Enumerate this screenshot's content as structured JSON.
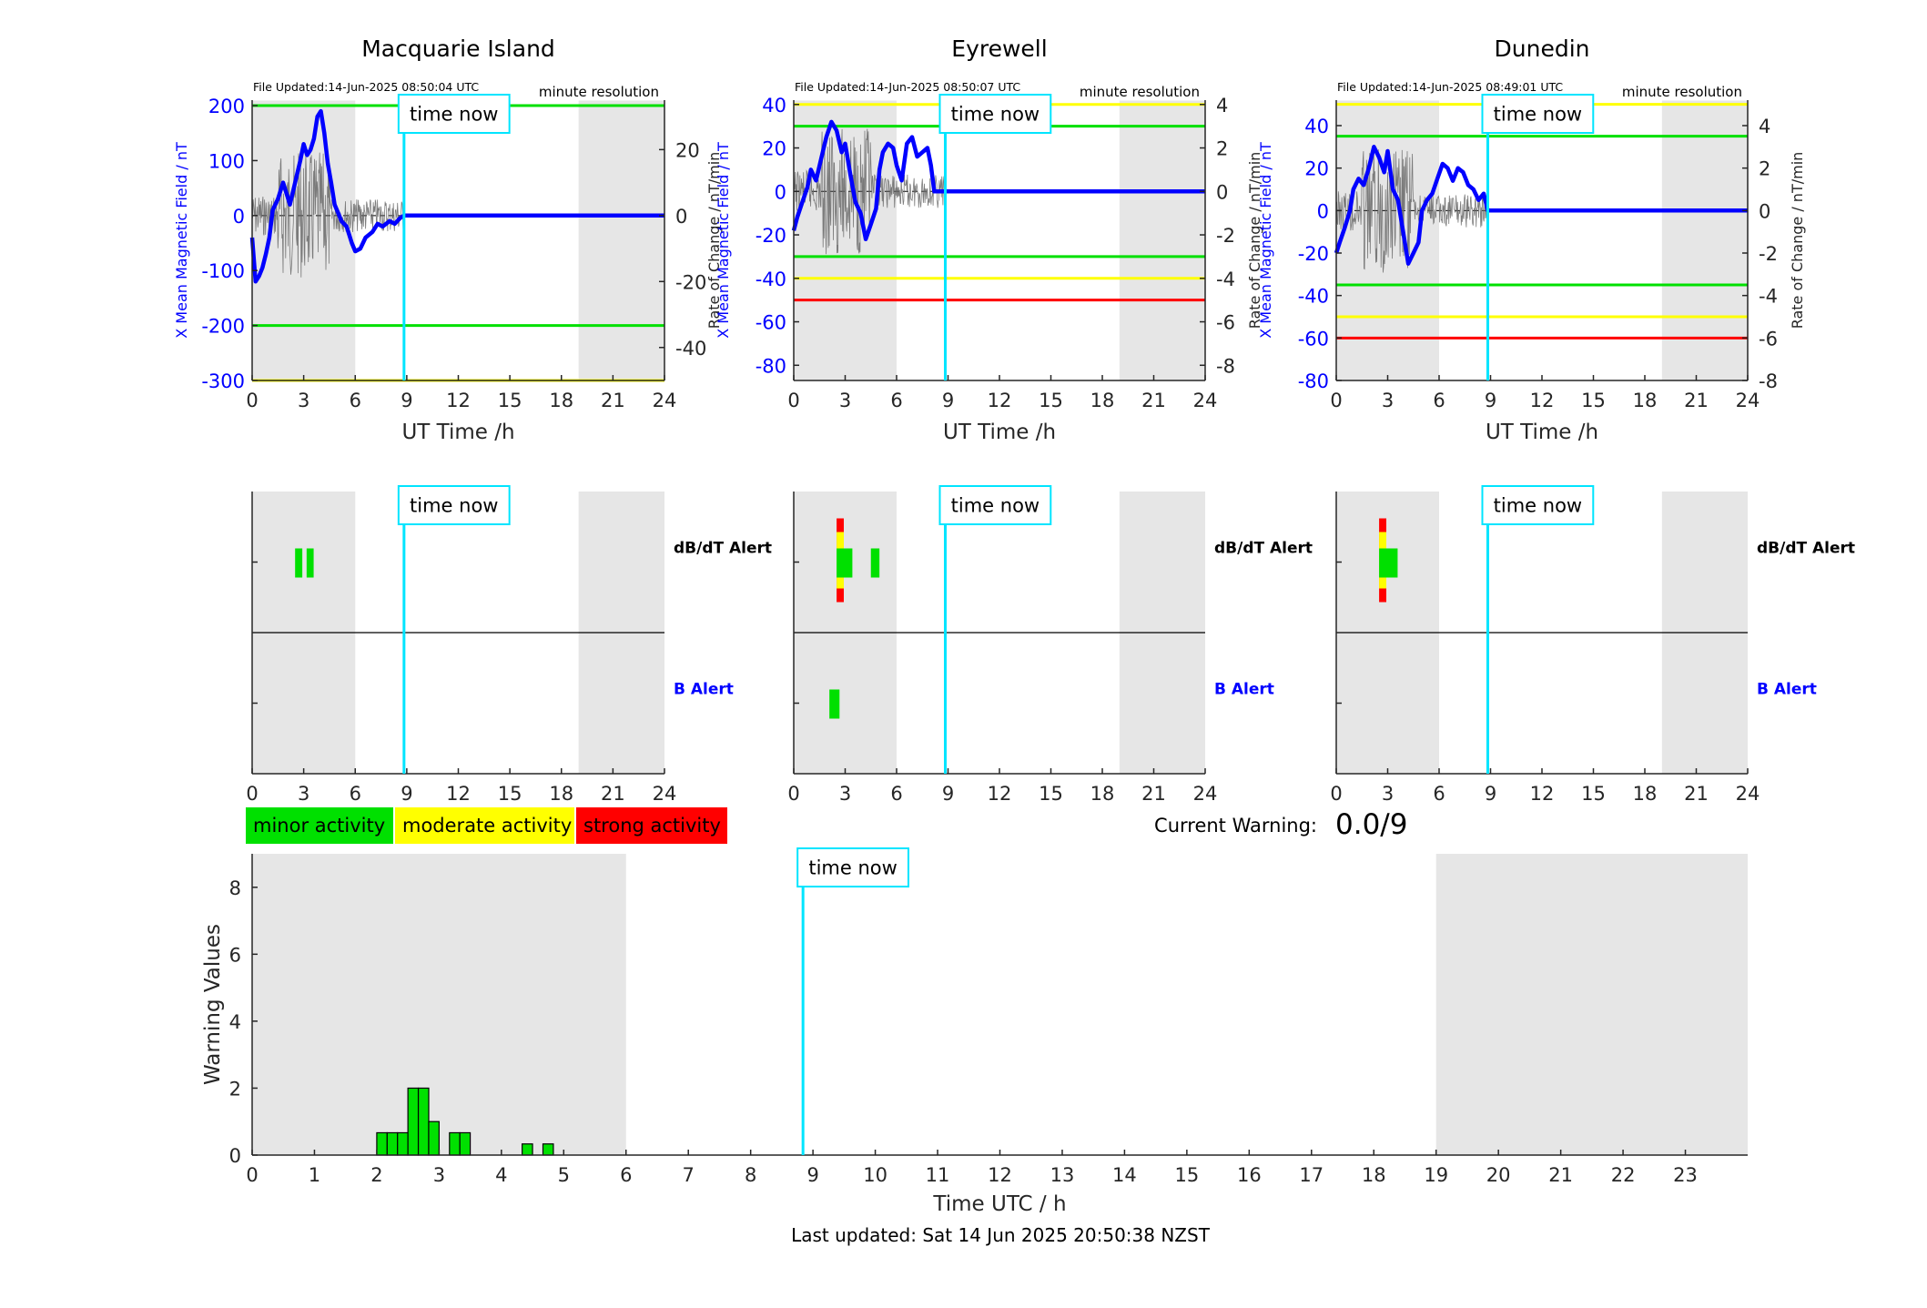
{
  "chart_data": [
    {
      "panel": "magnetic-field",
      "station": "Macquarie Island",
      "type": "line",
      "file_updated": "File Updated:14-Jun-2025 08:50:04 UTC",
      "resolution_label": "minute resolution",
      "xlabel": "UT Time /h",
      "ylabel_left": "X Mean Magnetic Field / nT",
      "ylabel_right": "Rate of Change / nT/min",
      "xlim": [
        0,
        24
      ],
      "xticks": [
        0,
        3,
        6,
        9,
        12,
        15,
        18,
        21,
        24
      ],
      "ylim_left": [
        -300,
        210
      ],
      "yticks_left": [
        -300,
        -200,
        -100,
        0,
        100,
        200
      ],
      "ylim_right": [
        -50,
        35
      ],
      "yticks_right": [
        -40,
        -20,
        0,
        20
      ],
      "night_shading": [
        [
          0,
          6
        ],
        [
          19,
          24
        ]
      ],
      "time_now": 8.84,
      "time_now_label": "time now",
      "thresholds": [
        {
          "value": 200,
          "color": "#00e000"
        },
        {
          "value": -200,
          "color": "#00e000"
        },
        {
          "value": -300,
          "color": "#ffff00"
        }
      ],
      "series": [
        {
          "color": "#0000ff",
          "x": [
            0,
            0.2,
            0.4,
            0.6,
            0.8,
            1.0,
            1.2,
            1.5,
            1.8,
            2.0,
            2.2,
            2.5,
            2.8,
            3.0,
            3.2,
            3.4,
            3.6,
            3.8,
            4.0,
            4.2,
            4.4,
            4.6,
            4.8,
            5.0,
            5.2,
            5.5,
            5.8,
            6.0,
            6.3,
            6.6,
            7.0,
            7.3,
            7.6,
            8.0,
            8.3,
            8.6,
            8.84,
            24
          ],
          "y": [
            -40,
            -120,
            -110,
            -95,
            -70,
            -40,
            10,
            30,
            60,
            40,
            20,
            60,
            100,
            130,
            110,
            120,
            140,
            180,
            190,
            150,
            95,
            60,
            20,
            5,
            -10,
            -20,
            -50,
            -65,
            -60,
            -40,
            -30,
            -15,
            -20,
            -10,
            -15,
            -5,
            0,
            0
          ]
        }
      ]
    },
    {
      "panel": "magnetic-field",
      "station": "Eyrewell",
      "type": "line",
      "file_updated": "File Updated:14-Jun-2025 08:50:07 UTC",
      "resolution_label": "minute resolution",
      "xlabel": "UT Time /h",
      "ylabel_left": "X Mean Magnetic Field / nT",
      "ylabel_right": "Rate of Change / nT/min",
      "xlim": [
        0,
        24
      ],
      "xticks": [
        0,
        3,
        6,
        9,
        12,
        15,
        18,
        21,
        24
      ],
      "ylim_left": [
        -87,
        42
      ],
      "yticks_left": [
        -80,
        -60,
        -40,
        -20,
        0,
        20,
        40
      ],
      "ylim_right": [
        -8.7,
        4.2
      ],
      "yticks_right": [
        -8,
        -6,
        -4,
        -2,
        0,
        2,
        4
      ],
      "night_shading": [
        [
          0,
          6
        ],
        [
          19,
          24
        ]
      ],
      "time_now": 8.84,
      "time_now_label": "time now",
      "thresholds": [
        {
          "value": 40,
          "color": "#ffff00"
        },
        {
          "value": 30,
          "color": "#00e000"
        },
        {
          "value": -30,
          "color": "#00e000"
        },
        {
          "value": -40,
          "color": "#ffff00"
        },
        {
          "value": -50,
          "color": "#ff0000"
        }
      ],
      "series": [
        {
          "color": "#0000ff",
          "x": [
            0,
            0.2,
            0.5,
            0.8,
            1.0,
            1.3,
            1.6,
            1.9,
            2.2,
            2.5,
            2.8,
            3.0,
            3.3,
            3.6,
            3.9,
            4.2,
            4.5,
            4.8,
            5.0,
            5.2,
            5.5,
            5.8,
            6.0,
            6.3,
            6.6,
            6.9,
            7.2,
            7.5,
            7.8,
            8.0,
            8.2,
            8.84,
            24
          ],
          "y": [
            -18,
            -12,
            -5,
            2,
            10,
            5,
            15,
            25,
            32,
            28,
            18,
            22,
            8,
            -5,
            -10,
            -22,
            -15,
            -8,
            10,
            18,
            22,
            20,
            12,
            5,
            22,
            25,
            16,
            18,
            20,
            12,
            0,
            0,
            0
          ]
        }
      ]
    },
    {
      "panel": "magnetic-field",
      "station": "Dunedin",
      "type": "line",
      "file_updated": "File Updated:14-Jun-2025 08:49:01 UTC",
      "resolution_label": "minute resolution",
      "xlabel": "UT Time /h",
      "ylabel_left": "X Mean Magnetic Field / nT",
      "ylabel_right": "Rate of Change / nT/min",
      "xlim": [
        0,
        24
      ],
      "xticks": [
        0,
        3,
        6,
        9,
        12,
        15,
        18,
        21,
        24
      ],
      "ylim_left": [
        -80,
        52
      ],
      "yticks_left": [
        -80,
        -60,
        -40,
        -20,
        0,
        20,
        40
      ],
      "ylim_right": [
        -8,
        5.2
      ],
      "yticks_right": [
        -8,
        -6,
        -4,
        -2,
        0,
        2,
        4
      ],
      "night_shading": [
        [
          0,
          6
        ],
        [
          19,
          24
        ]
      ],
      "time_now": 8.84,
      "time_now_label": "time now",
      "thresholds": [
        {
          "value": 50,
          "color": "#ffff00"
        },
        {
          "value": 35,
          "color": "#00e000"
        },
        {
          "value": -35,
          "color": "#00e000"
        },
        {
          "value": -50,
          "color": "#ffff00"
        },
        {
          "value": -60,
          "color": "#ff0000"
        }
      ],
      "series": [
        {
          "color": "#0000ff",
          "x": [
            0,
            0.2,
            0.5,
            0.8,
            1.0,
            1.3,
            1.6,
            1.9,
            2.2,
            2.5,
            2.8,
            3.0,
            3.3,
            3.6,
            3.9,
            4.2,
            4.5,
            4.8,
            5.0,
            5.3,
            5.6,
            5.9,
            6.2,
            6.5,
            6.8,
            7.1,
            7.4,
            7.7,
            8.0,
            8.3,
            8.6,
            8.84,
            24
          ],
          "y": [
            -20,
            -15,
            -8,
            0,
            10,
            15,
            12,
            20,
            30,
            25,
            18,
            28,
            10,
            5,
            -10,
            -25,
            -20,
            -15,
            0,
            5,
            8,
            15,
            22,
            20,
            14,
            20,
            18,
            12,
            10,
            5,
            8,
            0,
            0
          ]
        }
      ]
    },
    {
      "panel": "alerts",
      "station": "Macquarie Island",
      "type": "bar",
      "xlim": [
        0,
        24
      ],
      "xticks": [
        0,
        3,
        6,
        9,
        12,
        15,
        18,
        21,
        24
      ],
      "night_shading": [
        [
          0,
          6
        ],
        [
          19,
          24
        ]
      ],
      "time_now": 8.84,
      "time_now_label": "time now",
      "rows": [
        {
          "label": "dB/dT Alert",
          "label_color": "#000000",
          "events": [
            {
              "start": 2.5,
              "end": 2.92,
              "level": 1
            },
            {
              "start": 3.17,
              "end": 3.58,
              "level": 1
            }
          ]
        },
        {
          "label": "B Alert",
          "label_color": "#0000ff",
          "events": []
        }
      ]
    },
    {
      "panel": "alerts",
      "station": "Eyrewell",
      "type": "bar",
      "xlim": [
        0,
        24
      ],
      "xticks": [
        0,
        3,
        6,
        9,
        12,
        15,
        18,
        21,
        24
      ],
      "night_shading": [
        [
          0,
          6
        ],
        [
          19,
          24
        ]
      ],
      "time_now": 8.84,
      "time_now_label": "time now",
      "rows": [
        {
          "label": "dB/dT Alert",
          "label_color": "#000000",
          "events": [
            {
              "start": 2.5,
              "end": 2.92,
              "level": 3
            },
            {
              "start": 2.92,
              "end": 3.42,
              "level": 1
            },
            {
              "start": 4.5,
              "end": 5.0,
              "level": 1
            }
          ]
        },
        {
          "label": "B Alert",
          "label_color": "#0000ff",
          "events": [
            {
              "start": 2.08,
              "end": 2.67,
              "level": 1
            }
          ]
        }
      ]
    },
    {
      "panel": "alerts",
      "station": "Dunedin",
      "type": "bar",
      "xlim": [
        0,
        24
      ],
      "xticks": [
        0,
        3,
        6,
        9,
        12,
        15,
        18,
        21,
        24
      ],
      "night_shading": [
        [
          0,
          6
        ],
        [
          19,
          24
        ]
      ],
      "time_now": 8.84,
      "time_now_label": "time now",
      "rows": [
        {
          "label": "dB/dT Alert",
          "label_color": "#000000",
          "events": [
            {
              "start": 2.5,
              "end": 2.92,
              "level": 3
            },
            {
              "start": 2.92,
              "end": 3.58,
              "level": 1
            }
          ]
        },
        {
          "label": "B Alert",
          "label_color": "#0000ff",
          "events": []
        }
      ]
    },
    {
      "panel": "warning-values",
      "type": "bar",
      "xlabel": "Time UTC / h",
      "ylabel": "Warning Values",
      "xlim": [
        0,
        24
      ],
      "xticks": [
        0,
        1,
        2,
        3,
        4,
        5,
        6,
        7,
        8,
        9,
        10,
        11,
        12,
        13,
        14,
        15,
        16,
        17,
        18,
        19,
        20,
        21,
        22,
        23
      ],
      "ylim": [
        0,
        9
      ],
      "yticks": [
        0,
        2,
        4,
        6,
        8
      ],
      "night_shading": [
        [
          0,
          6
        ],
        [
          19,
          24
        ]
      ],
      "time_now": 8.84,
      "time_now_label": "time now",
      "bar_width": 0.1667,
      "bar_color": "#00e000",
      "bars": [
        {
          "x": 2.0,
          "value": 0.667
        },
        {
          "x": 2.167,
          "value": 0.667
        },
        {
          "x": 2.333,
          "value": 0.667
        },
        {
          "x": 2.5,
          "value": 2.0
        },
        {
          "x": 2.667,
          "value": 2.0
        },
        {
          "x": 2.833,
          "value": 1.0
        },
        {
          "x": 3.167,
          "value": 0.667
        },
        {
          "x": 3.333,
          "value": 0.667
        },
        {
          "x": 4.333,
          "value": 0.333
        },
        {
          "x": 4.667,
          "value": 0.333
        }
      ]
    }
  ],
  "titles": [
    "Macquarie Island",
    "Eyrewell",
    "Dunedin"
  ],
  "legend": [
    {
      "label": "minor activity",
      "color": "#00e000"
    },
    {
      "label": "moderate activity",
      "color": "#ffff00"
    },
    {
      "label": "strong activity",
      "color": "#ff0000"
    }
  ],
  "current_warning": {
    "label": "Current Warning:",
    "value": "0.0/9"
  },
  "last_updated": "Last updated: Sat 14 Jun 2025 20:50:38 NZST",
  "colors": {
    "night": "#e6e6e6",
    "time_now": "#00e5ff",
    "field_line": "#0000ff",
    "rate_line": "#666666",
    "axis_label_left": "#0000ff"
  }
}
